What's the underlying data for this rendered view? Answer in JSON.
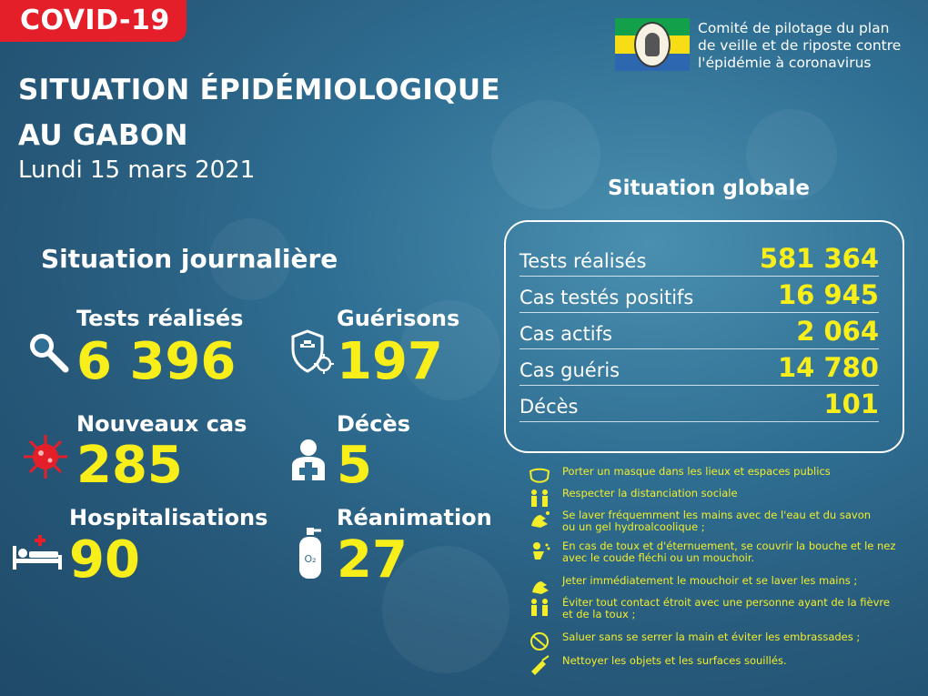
{
  "badge": "COVID-19",
  "title": {
    "line1": "SITUATION ÉPIDÉMIOLOGIQUE",
    "line2": "AU GABON",
    "date": "Lundi 15 mars 2021"
  },
  "committee": {
    "line1": "Comité de pilotage du plan",
    "line2": "de veille et de riposte contre",
    "line3": "l'épidémie à coronavirus"
  },
  "daily": {
    "heading": "Situation journalière",
    "tests": {
      "label": "Tests réalisés",
      "value": "6 396",
      "icon": "magnifier-icon"
    },
    "recoveries": {
      "label": "Guérisons",
      "value": "197",
      "icon": "shield-virus-icon"
    },
    "new_cases": {
      "label": "Nouveaux cas",
      "value": "285",
      "icon": "virus-icon"
    },
    "deaths": {
      "label": "Décès",
      "value": "5",
      "icon": "person-cross-icon"
    },
    "hospitalisations": {
      "label": "Hospitalisations",
      "value": "90",
      "icon": "hospital-bed-icon"
    },
    "icu": {
      "label": "Réanimation",
      "value": "27",
      "icon": "oxygen-tank-icon"
    }
  },
  "global": {
    "heading": "Situation globale",
    "rows": [
      {
        "label": "Tests réalisés",
        "value": "581 364"
      },
      {
        "label": "Cas testés positifs",
        "value": "16 945"
      },
      {
        "label": "Cas actifs",
        "value": "2 064"
      },
      {
        "label": "Cas guéris",
        "value": "14 780"
      },
      {
        "label": "Décès",
        "value": "101"
      }
    ]
  },
  "tips": [
    {
      "l1": "Porter un masque dans les lieux et espaces publics",
      "l2": "",
      "icon": "mask-icon"
    },
    {
      "l1": "Respecter la distanciation sociale",
      "l2": "",
      "icon": "distance-icon"
    },
    {
      "l1": "Se laver fréquemment les mains avec de l'eau et du savon",
      "l2": " ou un gel hydroalcoolique ;",
      "icon": "handwash-icon"
    },
    {
      "l1": "En cas de toux et d'éternuement, se couvrir la bouche et le nez",
      "l2": " avec le coude fléchi ou un mouchoir.",
      "icon": "sneeze-icon"
    },
    {
      "l1": "Jeter immédiatement le mouchoir et se laver les mains ;",
      "l2": "",
      "icon": "tissue-icon"
    },
    {
      "l1": "Éviter tout contact étroit avec une personne ayant de la fièvre",
      "l2": " et de la toux ;",
      "icon": "fever-icon"
    },
    {
      "l1": "Saluer sans se serrer la main et éviter les embrassades ;",
      "l2": "",
      "icon": "no-handshake-icon"
    },
    {
      "l1": "Nettoyer les objets et les surfaces souillés.",
      "l2": "",
      "icon": "cleaning-icon"
    }
  ],
  "colors": {
    "accent_yellow": "#f8ef1a",
    "badge_red": "#e41f2a",
    "bg_blue": "#2f6f93"
  }
}
